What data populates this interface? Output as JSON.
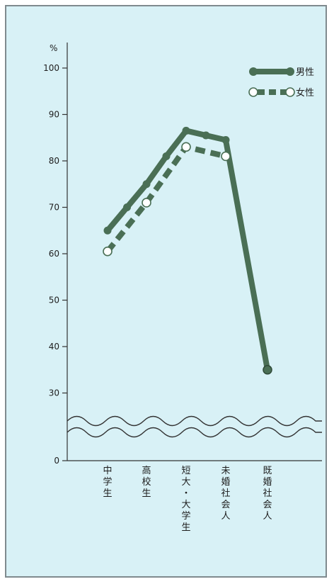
{
  "chart_data": {
    "type": "line",
    "categories": [
      "中学生",
      "高校生",
      "短大・大学生",
      "未婚社会人",
      "既婚社会人"
    ],
    "y_unit": "%",
    "y_ticks": [
      "0",
      "30",
      "40",
      "50",
      "60",
      "70",
      "80",
      "90",
      "100"
    ],
    "ylim": [
      0,
      100
    ],
    "axis_break": "wavy-lines-between-0-and-30",
    "grid": false,
    "legend_position": "top-right",
    "series": [
      {
        "name": "男性",
        "style": "solid-thick",
        "color": "#4a6f55",
        "points": [
          {
            "x": "中学生",
            "y": 65
          },
          {
            "x": "中学生-高校生 mid",
            "y": 70
          },
          {
            "x": "高校生",
            "y": 75
          },
          {
            "x": "高校生-短大・大学生 mid",
            "y": 81
          },
          {
            "x": "短大・大学生",
            "y": 86.5
          },
          {
            "x": "短大・大学生-未婚社会人 mid",
            "y": 85.5
          },
          {
            "x": "未婚社会人",
            "y": 84.5
          },
          {
            "x": "既婚社会人",
            "y": 35
          }
        ]
      },
      {
        "name": "女性",
        "style": "dashed-thick",
        "color": "#4a6f55",
        "points": [
          {
            "x": "中学生",
            "y": 60.5
          },
          {
            "x": "高校生",
            "y": 71
          },
          {
            "x": "短大・大学生",
            "y": 83
          },
          {
            "x": "未婚社会人",
            "y": 81
          }
        ]
      }
    ]
  }
}
